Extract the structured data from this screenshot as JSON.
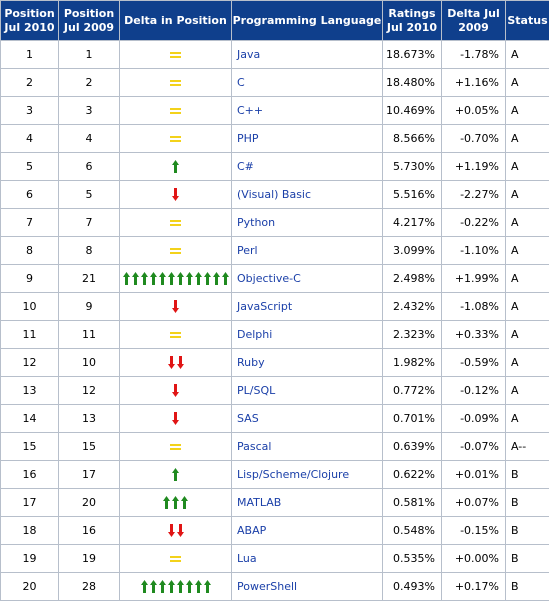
{
  "headers": {
    "pos2010": "Position Jul 2010",
    "pos2009": "Position Jul 2009",
    "delta_pos": "Delta in Position",
    "language": "Programming Language",
    "ratings": "Ratings Jul 2010",
    "delta": "Delta Jul 2009",
    "status": "Status"
  },
  "colors": {
    "up": "#1f8a1f",
    "down": "#e01515",
    "same": "#f3d21b",
    "header_bg": "#0f3f8c",
    "link": "#1a3fa8"
  },
  "rows": [
    {
      "p2010": "1",
      "p2009": "1",
      "move": "same",
      "count": 1,
      "lang": "Java",
      "rating": "18.673%",
      "delta": "-1.78%",
      "status": "A"
    },
    {
      "p2010": "2",
      "p2009": "2",
      "move": "same",
      "count": 1,
      "lang": "C",
      "rating": "18.480%",
      "delta": "+1.16%",
      "status": "A"
    },
    {
      "p2010": "3",
      "p2009": "3",
      "move": "same",
      "count": 1,
      "lang": "C++",
      "rating": "10.469%",
      "delta": "+0.05%",
      "status": "A"
    },
    {
      "p2010": "4",
      "p2009": "4",
      "move": "same",
      "count": 1,
      "lang": "PHP",
      "rating": "8.566%",
      "delta": "-0.70%",
      "status": "A"
    },
    {
      "p2010": "5",
      "p2009": "6",
      "move": "up",
      "count": 1,
      "lang": "C#",
      "rating": "5.730%",
      "delta": "+1.19%",
      "status": "A"
    },
    {
      "p2010": "6",
      "p2009": "5",
      "move": "down",
      "count": 1,
      "lang": "(Visual) Basic",
      "rating": "5.516%",
      "delta": "-2.27%",
      "status": "A"
    },
    {
      "p2010": "7",
      "p2009": "7",
      "move": "same",
      "count": 1,
      "lang": "Python",
      "rating": "4.217%",
      "delta": "-0.22%",
      "status": "A"
    },
    {
      "p2010": "8",
      "p2009": "8",
      "move": "same",
      "count": 1,
      "lang": "Perl",
      "rating": "3.099%",
      "delta": "-1.10%",
      "status": "A"
    },
    {
      "p2010": "9",
      "p2009": "21",
      "move": "up",
      "count": 12,
      "lang": "Objective-C",
      "rating": "2.498%",
      "delta": "+1.99%",
      "status": "A"
    },
    {
      "p2010": "10",
      "p2009": "9",
      "move": "down",
      "count": 1,
      "lang": "JavaScript",
      "rating": "2.432%",
      "delta": "-1.08%",
      "status": "A"
    },
    {
      "p2010": "11",
      "p2009": "11",
      "move": "same",
      "count": 1,
      "lang": "Delphi",
      "rating": "2.323%",
      "delta": "+0.33%",
      "status": "A"
    },
    {
      "p2010": "12",
      "p2009": "10",
      "move": "down",
      "count": 2,
      "lang": "Ruby",
      "rating": "1.982%",
      "delta": "-0.59%",
      "status": "A"
    },
    {
      "p2010": "13",
      "p2009": "12",
      "move": "down",
      "count": 1,
      "lang": "PL/SQL",
      "rating": "0.772%",
      "delta": "-0.12%",
      "status": "A"
    },
    {
      "p2010": "14",
      "p2009": "13",
      "move": "down",
      "count": 1,
      "lang": "SAS",
      "rating": "0.701%",
      "delta": "-0.09%",
      "status": "A"
    },
    {
      "p2010": "15",
      "p2009": "15",
      "move": "same",
      "count": 1,
      "lang": "Pascal",
      "rating": "0.639%",
      "delta": "-0.07%",
      "status": "A--"
    },
    {
      "p2010": "16",
      "p2009": "17",
      "move": "up",
      "count": 1,
      "lang": "Lisp/Scheme/Clojure",
      "rating": "0.622%",
      "delta": "+0.01%",
      "status": "B"
    },
    {
      "p2010": "17",
      "p2009": "20",
      "move": "up",
      "count": 3,
      "lang": "MATLAB",
      "rating": "0.581%",
      "delta": "+0.07%",
      "status": "B"
    },
    {
      "p2010": "18",
      "p2009": "16",
      "move": "down",
      "count": 2,
      "lang": "ABAP",
      "rating": "0.548%",
      "delta": "-0.15%",
      "status": "B"
    },
    {
      "p2010": "19",
      "p2009": "19",
      "move": "same",
      "count": 1,
      "lang": "Lua",
      "rating": "0.535%",
      "delta": "+0.00%",
      "status": "B"
    },
    {
      "p2010": "20",
      "p2009": "28",
      "move": "up",
      "count": 8,
      "lang": "PowerShell",
      "rating": "0.493%",
      "delta": "+0.17%",
      "status": "B"
    }
  ]
}
